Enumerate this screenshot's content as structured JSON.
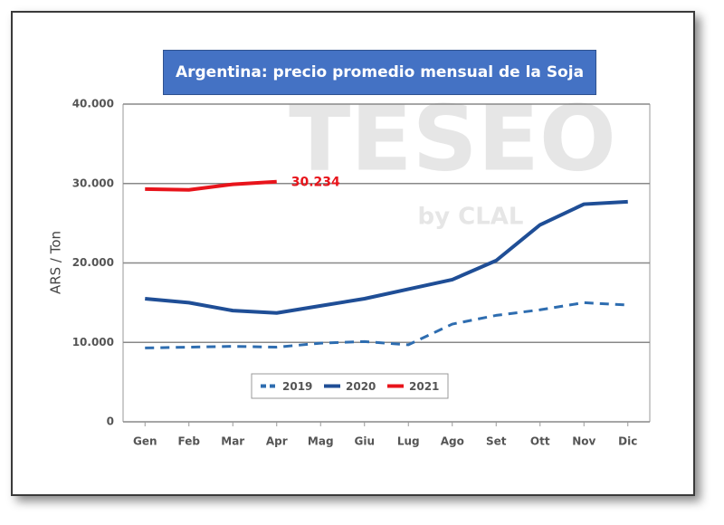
{
  "chart_data": {
    "type": "line",
    "title": "Argentina: precio promedio mensual de la Soja",
    "ylabel": "ARS / Ton",
    "watermark": "TESEO",
    "watermark_sub": "by CLAL",
    "categories": [
      "Gen",
      "Feb",
      "Mar",
      "Apr",
      "Mag",
      "Giu",
      "Lug",
      "Ago",
      "Set",
      "Ott",
      "Nov",
      "Dic"
    ],
    "series": [
      {
        "name": "2019",
        "color": "#2e6db0",
        "dashed": true,
        "values": [
          9300,
          9400,
          9500,
          9400,
          9900,
          10100,
          9700,
          12300,
          13400,
          14100,
          15000,
          14700
        ]
      },
      {
        "name": "2020",
        "color": "#1f4e96",
        "values": [
          15500,
          15000,
          14000,
          13700,
          14600,
          15500,
          16700,
          17900,
          20300,
          24800,
          27400,
          27700
        ]
      },
      {
        "name": "2021",
        "color": "#e8141b",
        "values": [
          29300,
          29200,
          29900,
          30234,
          null,
          null,
          null,
          null,
          null,
          null,
          null,
          null
        ],
        "value_labels": [
          null,
          null,
          null,
          "30.234",
          null,
          null,
          null,
          null,
          null,
          null,
          null,
          null
        ]
      }
    ],
    "ylim": [
      0,
      40000
    ],
    "yticks": [
      0,
      {
        "value": 10000,
        "label": "10.000"
      },
      {
        "value": 20000,
        "label": "20.000"
      },
      {
        "value": 30000,
        "label": "30.000"
      },
      {
        "value": 40000,
        "label": "40.000"
      }
    ],
    "grid": true,
    "legend": "bottom-center"
  }
}
